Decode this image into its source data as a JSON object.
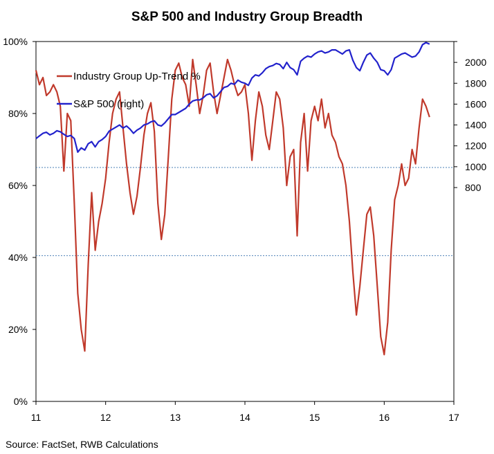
{
  "chart_data": {
    "type": "line",
    "title": "S&P 500 and Industry Group Breadth",
    "source": "Source: FactSet, RWB Calculations",
    "x_ticks": [
      "11",
      "12",
      "13",
      "14",
      "15",
      "16",
      "17"
    ],
    "xlim": [
      11,
      17
    ],
    "y_left": {
      "ticks": [
        "0%",
        "20%",
        "40%",
        "60%",
        "80%",
        "100%"
      ],
      "ylim": [
        0,
        100
      ]
    },
    "y_right": {
      "ticks": [
        "800",
        "1000",
        "1200",
        "1400",
        "1600",
        "1800",
        "2000"
      ],
      "ylim": [
        -1250,
        2200
      ]
    },
    "grid": false,
    "reference_lines": [
      65,
      40.5
    ],
    "legend_position": "top-left",
    "series": [
      {
        "name": "Industry Group Up-Trend %",
        "axis": "left",
        "color": "#c0392b",
        "x": [
          11.0,
          11.05,
          11.1,
          11.15,
          11.2,
          11.25,
          11.3,
          11.35,
          11.4,
          11.45,
          11.5,
          11.55,
          11.6,
          11.65,
          11.7,
          11.75,
          11.8,
          11.85,
          11.9,
          11.95,
          12.0,
          12.05,
          12.1,
          12.15,
          12.2,
          12.25,
          12.3,
          12.35,
          12.4,
          12.45,
          12.5,
          12.55,
          12.6,
          12.65,
          12.7,
          12.75,
          12.8,
          12.85,
          12.9,
          12.95,
          13.0,
          13.05,
          13.1,
          13.15,
          13.2,
          13.25,
          13.3,
          13.35,
          13.4,
          13.45,
          13.5,
          13.55,
          13.6,
          13.65,
          13.7,
          13.75,
          13.8,
          13.85,
          13.9,
          13.95,
          14.0,
          14.05,
          14.1,
          14.15,
          14.2,
          14.25,
          14.3,
          14.35,
          14.4,
          14.45,
          14.5,
          14.55,
          14.6,
          14.65,
          14.7,
          14.75,
          14.8,
          14.85,
          14.9,
          14.95,
          15.0,
          15.05,
          15.1,
          15.15,
          15.2,
          15.25,
          15.3,
          15.35,
          15.4,
          15.45,
          15.5,
          15.55,
          15.6,
          15.65,
          15.7,
          15.75,
          15.8,
          15.85,
          15.9,
          15.95,
          16.0,
          16.05,
          16.1,
          16.15,
          16.2,
          16.25,
          16.3,
          16.35,
          16.4,
          16.45,
          16.5,
          16.55,
          16.6,
          16.65
        ],
        "values": [
          92,
          88,
          90,
          85,
          86,
          88,
          86,
          82,
          64,
          80,
          78,
          55,
          30,
          20,
          14,
          38,
          58,
          42,
          50,
          55,
          62,
          72,
          80,
          84,
          86,
          76,
          66,
          58,
          52,
          57,
          65,
          74,
          80,
          83,
          75,
          55,
          45,
          52,
          68,
          84,
          92,
          94,
          90,
          88,
          82,
          95,
          88,
          80,
          85,
          92,
          94,
          86,
          80,
          85,
          90,
          95,
          92,
          88,
          85,
          86,
          88,
          80,
          67,
          78,
          86,
          82,
          74,
          70,
          78,
          86,
          84,
          76,
          60,
          68,
          70,
          46,
          72,
          80,
          64,
          78,
          82,
          78,
          84,
          76,
          80,
          74,
          72,
          68,
          66,
          60,
          50,
          36,
          24,
          32,
          42,
          52,
          54,
          46,
          32,
          18,
          13,
          22,
          42,
          56,
          60,
          66,
          60,
          62,
          70,
          66,
          76,
          84,
          82,
          79
        ]
      },
      {
        "name": "S&P 500 (right)",
        "axis": "right",
        "color": "#2222cc",
        "x": [
          11.0,
          11.05,
          11.1,
          11.15,
          11.2,
          11.25,
          11.3,
          11.35,
          11.4,
          11.45,
          11.5,
          11.55,
          11.6,
          11.65,
          11.7,
          11.75,
          11.8,
          11.85,
          11.9,
          11.95,
          12.0,
          12.05,
          12.1,
          12.15,
          12.2,
          12.25,
          12.3,
          12.35,
          12.4,
          12.45,
          12.5,
          12.55,
          12.6,
          12.65,
          12.7,
          12.75,
          12.8,
          12.85,
          12.9,
          12.95,
          13.0,
          13.05,
          13.1,
          13.15,
          13.2,
          13.25,
          13.3,
          13.35,
          13.4,
          13.45,
          13.5,
          13.55,
          13.6,
          13.65,
          13.7,
          13.75,
          13.8,
          13.85,
          13.9,
          13.95,
          14.0,
          14.05,
          14.1,
          14.15,
          14.2,
          14.25,
          14.3,
          14.35,
          14.4,
          14.45,
          14.5,
          14.55,
          14.6,
          14.65,
          14.7,
          14.75,
          14.8,
          14.85,
          14.9,
          14.95,
          15.0,
          15.05,
          15.1,
          15.15,
          15.2,
          15.25,
          15.3,
          15.35,
          15.4,
          15.45,
          15.5,
          15.55,
          15.6,
          15.65,
          15.7,
          15.75,
          15.8,
          15.85,
          15.9,
          15.95,
          16.0,
          16.05,
          16.1,
          16.15,
          16.2,
          16.25,
          16.3,
          16.35,
          16.4,
          16.45,
          16.5,
          16.55,
          16.6,
          16.65
        ],
        "values": [
          1270,
          1295,
          1320,
          1330,
          1305,
          1320,
          1345,
          1335,
          1310,
          1290,
          1300,
          1270,
          1140,
          1180,
          1160,
          1220,
          1240,
          1190,
          1240,
          1260,
          1290,
          1340,
          1360,
          1380,
          1400,
          1370,
          1390,
          1360,
          1320,
          1350,
          1370,
          1400,
          1410,
          1430,
          1440,
          1400,
          1390,
          1420,
          1460,
          1500,
          1500,
          1520,
          1540,
          1560,
          1600,
          1630,
          1640,
          1640,
          1660,
          1690,
          1700,
          1660,
          1680,
          1720,
          1760,
          1770,
          1800,
          1790,
          1830,
          1810,
          1800,
          1780,
          1850,
          1880,
          1870,
          1900,
          1940,
          1960,
          1970,
          1990,
          1980,
          1940,
          2000,
          1950,
          1930,
          1880,
          2010,
          2040,
          2060,
          2050,
          2080,
          2100,
          2110,
          2090,
          2100,
          2120,
          2120,
          2100,
          2080,
          2110,
          2120,
          2020,
          1950,
          1920,
          2000,
          2070,
          2090,
          2040,
          2000,
          1930,
          1920,
          1880,
          1930,
          2040,
          2060,
          2080,
          2090,
          2070,
          2050,
          2060,
          2100,
          2170,
          2190,
          2175
        ]
      }
    ]
  }
}
